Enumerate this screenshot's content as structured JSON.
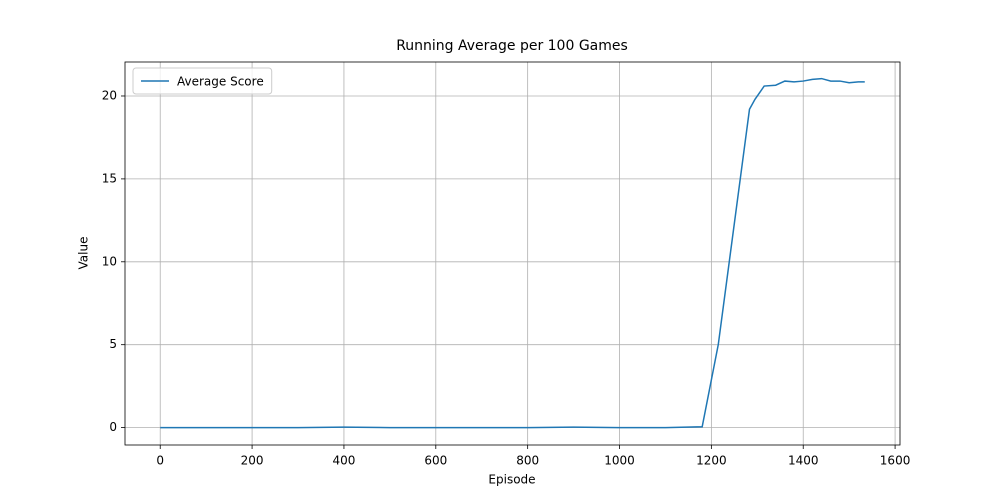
{
  "chart_data": {
    "type": "line",
    "title": "Running Average per 100 Games",
    "xlabel": "Episode",
    "ylabel": "Value",
    "x": [
      0,
      100,
      200,
      300,
      400,
      500,
      600,
      700,
      800,
      900,
      1000,
      1100,
      1180,
      1215,
      1283,
      1295,
      1315,
      1340,
      1360,
      1380,
      1400,
      1420,
      1440,
      1460,
      1480,
      1500,
      1520,
      1534
    ],
    "series": [
      {
        "name": "Average Score",
        "color": "#1f77b4",
        "values": [
          0,
          0,
          0,
          0,
          0.03,
          0,
          0,
          0,
          0,
          0.03,
          0,
          0,
          0.05,
          5.0,
          19.2,
          19.8,
          20.6,
          20.65,
          20.9,
          20.85,
          20.9,
          21.0,
          21.05,
          20.9,
          20.9,
          20.8,
          20.85,
          20.85
        ]
      }
    ],
    "xlim": [
      -76.7,
      1610.7
    ],
    "ylim": [
      -1.05,
      22.05
    ],
    "xticks": [
      0,
      200,
      400,
      600,
      800,
      1000,
      1200,
      1400,
      1600
    ],
    "yticks": [
      0,
      5,
      10,
      15,
      20
    ],
    "grid": true,
    "legend": "upper left"
  }
}
